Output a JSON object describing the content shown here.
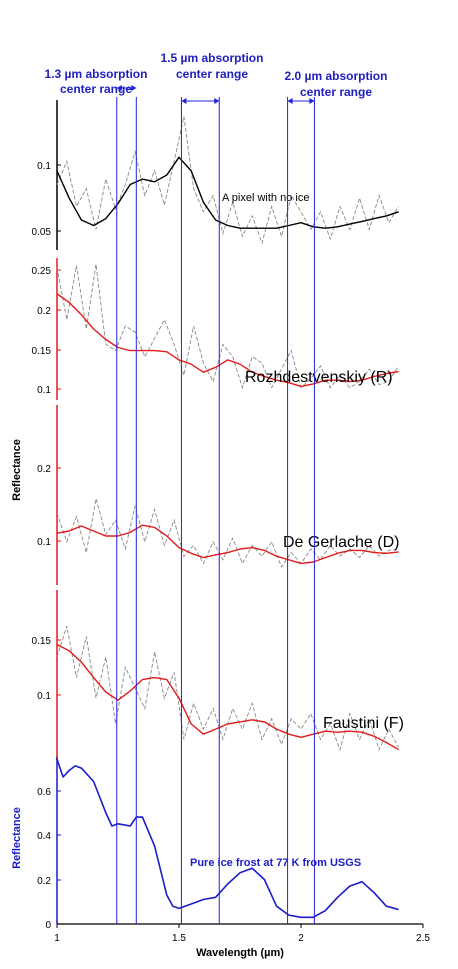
{
  "chart_data": {
    "type": "line",
    "xlabel": "Wavelength (µm)",
    "x_ticks": [
      "1",
      "1.5",
      "2",
      "2.5"
    ],
    "xlim": [
      1,
      2.5
    ],
    "ylabel_shared": "Reflectance",
    "ylabel_bottom": "Reflectance",
    "colors": {
      "band": "#2222dd",
      "header": "#2020c0",
      "smooth_red": "#e31a1c",
      "smooth_black": "#000000",
      "raw": "#888888",
      "ice": "#1c1cc8"
    },
    "absorption_ranges": [
      {
        "label": "1.3 µm absorption center range",
        "line1": "1.3 µm absorption",
        "line2": "center range",
        "xmin": 1.245,
        "xmax": 1.325
      },
      {
        "label": "1.5 µm absorption center range",
        "line1": "1.5 µm absorption",
        "line2": "center range",
        "xmin": 1.51,
        "xmax": 1.665
      },
      {
        "label": "2.0 µm absorption center range",
        "line1": "2.0 µm absorption",
        "line2": "center range",
        "xmin": 1.945,
        "xmax": 2.055
      }
    ],
    "panels": [
      {
        "id": "no-ice",
        "label": "A pixel with no ice",
        "axis_color": "#000000",
        "smooth_color": "#000000",
        "yticks": [
          "0.1",
          "0.05"
        ],
        "ylim": [
          0.03,
          0.14
        ],
        "smooth_series": {
          "x": [
            1.0,
            1.05,
            1.1,
            1.15,
            1.2,
            1.25,
            1.3,
            1.35,
            1.4,
            1.45,
            1.5,
            1.55,
            1.6,
            1.65,
            1.7,
            1.75,
            1.8,
            1.85,
            1.9,
            1.95,
            2.0,
            2.05,
            2.1,
            2.15,
            2.2,
            2.25,
            2.3,
            2.35,
            2.4
          ],
          "y": [
            0.088,
            0.068,
            0.052,
            0.048,
            0.053,
            0.064,
            0.078,
            0.082,
            0.08,
            0.085,
            0.098,
            0.088,
            0.065,
            0.052,
            0.048,
            0.046,
            0.046,
            0.046,
            0.046,
            0.048,
            0.05,
            0.047,
            0.046,
            0.047,
            0.049,
            0.051,
            0.053,
            0.055,
            0.058
          ]
        },
        "raw_series": {
          "x": [
            1.0,
            1.04,
            1.08,
            1.12,
            1.16,
            1.2,
            1.24,
            1.28,
            1.32,
            1.36,
            1.4,
            1.44,
            1.48,
            1.52,
            1.56,
            1.6,
            1.64,
            1.68,
            1.72,
            1.76,
            1.8,
            1.84,
            1.88,
            1.92,
            1.96,
            2.0,
            2.04,
            2.08,
            2.12,
            2.16,
            2.2,
            2.24,
            2.28,
            2.32,
            2.36,
            2.4
          ],
          "y": [
            0.078,
            0.095,
            0.062,
            0.075,
            0.045,
            0.082,
            0.06,
            0.078,
            0.102,
            0.07,
            0.088,
            0.063,
            0.095,
            0.128,
            0.075,
            0.058,
            0.07,
            0.042,
            0.065,
            0.04,
            0.055,
            0.035,
            0.062,
            0.04,
            0.07,
            0.058,
            0.045,
            0.058,
            0.038,
            0.062,
            0.045,
            0.068,
            0.045,
            0.07,
            0.05,
            0.062
          ]
        }
      },
      {
        "id": "rozhdestvenskiy",
        "label": "Rozhdestvenskiy (R)",
        "axis_color": "#e31a1c",
        "smooth_color": "#e31a1c",
        "yticks": [
          "0.25",
          "0.2",
          "0.15",
          "0.1"
        ],
        "ylim": [
          0.04,
          0.27
        ],
        "smooth_series": {
          "x": [
            1.0,
            1.05,
            1.1,
            1.15,
            1.2,
            1.25,
            1.3,
            1.35,
            1.4,
            1.45,
            1.5,
            1.55,
            1.6,
            1.65,
            1.7,
            1.75,
            1.8,
            1.85,
            1.9,
            1.95,
            2.0,
            2.05,
            2.1,
            2.15,
            2.2,
            2.25,
            2.3,
            2.35,
            2.4
          ],
          "y": [
            0.212,
            0.198,
            0.178,
            0.155,
            0.138,
            0.125,
            0.12,
            0.12,
            0.12,
            0.118,
            0.105,
            0.098,
            0.085,
            0.093,
            0.105,
            0.098,
            0.085,
            0.078,
            0.072,
            0.068,
            0.062,
            0.066,
            0.072,
            0.072,
            0.07,
            0.072,
            0.078,
            0.083,
            0.086
          ]
        },
        "raw_series": {
          "x": [
            1.0,
            1.04,
            1.08,
            1.12,
            1.16,
            1.2,
            1.24,
            1.28,
            1.32,
            1.36,
            1.4,
            1.44,
            1.48,
            1.52,
            1.56,
            1.6,
            1.64,
            1.68,
            1.72,
            1.76,
            1.8,
            1.84,
            1.88,
            1.92,
            1.96,
            2.0,
            2.04,
            2.08,
            2.12,
            2.16,
            2.2,
            2.24,
            2.28,
            2.32,
            2.36,
            2.4
          ],
          "y": [
            0.255,
            0.17,
            0.258,
            0.155,
            0.26,
            0.13,
            0.12,
            0.16,
            0.15,
            0.11,
            0.14,
            0.17,
            0.13,
            0.08,
            0.16,
            0.1,
            0.07,
            0.13,
            0.11,
            0.06,
            0.11,
            0.1,
            0.06,
            0.09,
            0.12,
            0.06,
            0.075,
            0.095,
            0.06,
            0.08,
            0.06,
            0.07,
            0.09,
            0.065,
            0.07,
            0.095
          ]
        }
      },
      {
        "id": "de-gerlache",
        "label": "De Gerlache (D)",
        "axis_color": "#e31a1c",
        "smooth_color": "#e31a1c",
        "yticks": [
          "0.2",
          "0.1"
        ],
        "ylim": [
          0.02,
          0.27
        ],
        "smooth_series": {
          "x": [
            1.0,
            1.05,
            1.1,
            1.15,
            1.2,
            1.25,
            1.3,
            1.35,
            1.4,
            1.45,
            1.5,
            1.55,
            1.6,
            1.65,
            1.7,
            1.75,
            1.8,
            1.85,
            1.9,
            1.95,
            2.0,
            2.05,
            2.1,
            2.15,
            2.2,
            2.25,
            2.3,
            2.35,
            2.4
          ],
          "y": [
            0.092,
            0.095,
            0.102,
            0.095,
            0.088,
            0.088,
            0.093,
            0.103,
            0.1,
            0.088,
            0.072,
            0.064,
            0.058,
            0.062,
            0.065,
            0.07,
            0.072,
            0.068,
            0.06,
            0.055,
            0.05,
            0.052,
            0.058,
            0.064,
            0.068,
            0.068,
            0.065,
            0.064,
            0.066
          ]
        },
        "raw_series": {
          "x": [
            1.0,
            1.04,
            1.08,
            1.12,
            1.16,
            1.2,
            1.24,
            1.28,
            1.32,
            1.36,
            1.4,
            1.44,
            1.48,
            1.52,
            1.56,
            1.6,
            1.64,
            1.68,
            1.72,
            1.76,
            1.8,
            1.84,
            1.88,
            1.92,
            1.96,
            2.0,
            2.04,
            2.08,
            2.12,
            2.16,
            2.2,
            2.24,
            2.28,
            2.32,
            2.36,
            2.4
          ],
          "y": [
            0.12,
            0.08,
            0.115,
            0.065,
            0.14,
            0.09,
            0.11,
            0.07,
            0.13,
            0.08,
            0.125,
            0.075,
            0.11,
            0.06,
            0.075,
            0.05,
            0.08,
            0.055,
            0.085,
            0.05,
            0.075,
            0.06,
            0.08,
            0.045,
            0.065,
            0.05,
            0.07,
            0.055,
            0.075,
            0.06,
            0.07,
            0.058,
            0.075,
            0.06,
            0.068,
            0.07
          ]
        }
      },
      {
        "id": "faustini",
        "label": "Faustini (F)",
        "axis_color": "#e31a1c",
        "smooth_color": "#e31a1c",
        "yticks": [
          "0.15",
          "0.1"
        ],
        "ylim": [
          0.03,
          0.195
        ],
        "smooth_series": {
          "x": [
            1.0,
            1.05,
            1.1,
            1.15,
            1.2,
            1.25,
            1.3,
            1.35,
            1.4,
            1.45,
            1.5,
            1.55,
            1.6,
            1.65,
            1.7,
            1.75,
            1.8,
            1.85,
            1.9,
            1.95,
            2.0,
            2.05,
            2.1,
            2.15,
            2.2,
            2.25,
            2.3,
            2.35,
            2.4
          ],
          "y": [
            0.142,
            0.136,
            0.125,
            0.11,
            0.096,
            0.088,
            0.097,
            0.108,
            0.11,
            0.108,
            0.09,
            0.065,
            0.055,
            0.06,
            0.065,
            0.067,
            0.069,
            0.067,
            0.06,
            0.055,
            0.052,
            0.055,
            0.058,
            0.057,
            0.058,
            0.057,
            0.053,
            0.047,
            0.04
          ]
        },
        "raw_series": {
          "x": [
            1.0,
            1.04,
            1.08,
            1.12,
            1.16,
            1.2,
            1.24,
            1.28,
            1.32,
            1.36,
            1.4,
            1.44,
            1.48,
            1.52,
            1.56,
            1.6,
            1.64,
            1.68,
            1.72,
            1.76,
            1.8,
            1.84,
            1.88,
            1.92,
            1.96,
            2.0,
            2.04,
            2.08,
            2.12,
            2.16,
            2.2,
            2.24,
            2.28,
            2.32,
            2.36,
            2.4
          ],
          "y": [
            0.13,
            0.16,
            0.11,
            0.15,
            0.09,
            0.13,
            0.065,
            0.12,
            0.1,
            0.08,
            0.135,
            0.09,
            0.115,
            0.05,
            0.085,
            0.06,
            0.08,
            0.05,
            0.08,
            0.06,
            0.085,
            0.05,
            0.07,
            0.045,
            0.07,
            0.06,
            0.075,
            0.05,
            0.065,
            0.04,
            0.075,
            0.05,
            0.07,
            0.04,
            0.06,
            0.042
          ]
        }
      },
      {
        "id": "ice",
        "label": "Pure ice frost at 77 K from USGS",
        "axis_color": "#1c1cc8",
        "smooth_color": "#1c1cc8",
        "yticks": [
          "0",
          "0.2",
          "0.4",
          "0.6"
        ],
        "ylim": [
          0,
          0.75
        ],
        "smooth_series": {
          "x": [
            1.0,
            1.025,
            1.05,
            1.075,
            1.1,
            1.15,
            1.2,
            1.225,
            1.25,
            1.3,
            1.325,
            1.35,
            1.4,
            1.45,
            1.475,
            1.5,
            1.55,
            1.6,
            1.65,
            1.7,
            1.75,
            1.8,
            1.85,
            1.9,
            1.95,
            2.0,
            2.05,
            2.1,
            2.15,
            2.2,
            2.25,
            2.3,
            2.35,
            2.4
          ],
          "y": [
            0.74,
            0.66,
            0.69,
            0.71,
            0.7,
            0.64,
            0.5,
            0.44,
            0.45,
            0.44,
            0.48,
            0.48,
            0.35,
            0.13,
            0.08,
            0.07,
            0.09,
            0.11,
            0.12,
            0.18,
            0.23,
            0.25,
            0.2,
            0.08,
            0.04,
            0.03,
            0.03,
            0.06,
            0.12,
            0.17,
            0.19,
            0.14,
            0.08,
            0.065
          ]
        }
      }
    ]
  }
}
